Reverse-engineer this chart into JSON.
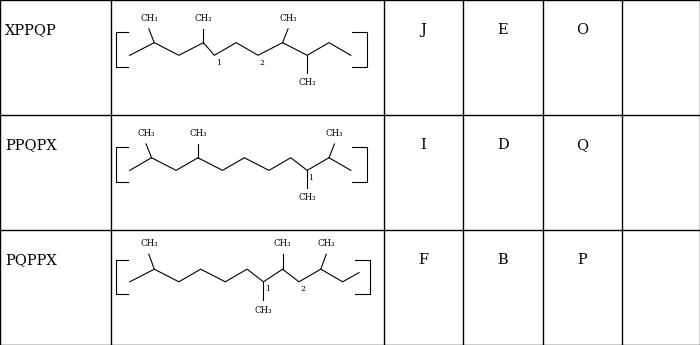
{
  "col_starts": [
    0.0,
    0.158,
    0.548,
    0.662,
    0.775,
    0.888,
    1.0
  ],
  "row_starts": [
    0.0,
    0.333,
    0.666,
    1.0
  ],
  "row_labels": [
    "XPPQP",
    "PPQPX",
    "PQPPX"
  ],
  "cell_labels": [
    {
      "text": "J",
      "col": 2,
      "row": 0
    },
    {
      "text": "E",
      "col": 3,
      "row": 0
    },
    {
      "text": "O",
      "col": 4,
      "row": 0
    },
    {
      "text": "I",
      "col": 2,
      "row": 1
    },
    {
      "text": "D",
      "col": 3,
      "row": 1
    },
    {
      "text": "Q",
      "col": 4,
      "row": 1
    },
    {
      "text": "F",
      "col": 2,
      "row": 2
    },
    {
      "text": "B",
      "col": 3,
      "row": 2
    },
    {
      "text": "P",
      "col": 4,
      "row": 2
    }
  ],
  "bg_color": "#ffffff",
  "line_color": "#000000"
}
